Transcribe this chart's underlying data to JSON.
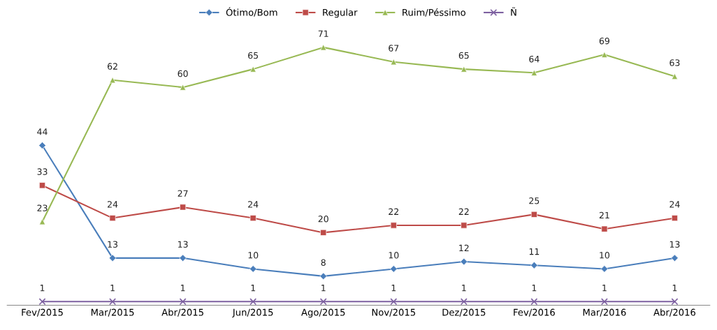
{
  "chart_data": {
    "type": "line",
    "categories": [
      "Fev/2015",
      "Mar/2015",
      "Abr/2015",
      "Jun/2015",
      "Ago/2015",
      "Nov/2015",
      "Dez/2015",
      "Fev/2016",
      "Mar/2016",
      "Abr/2016"
    ],
    "series": [
      {
        "name": "Ótimo/Bom",
        "color": "#4a7ebb",
        "marker": "diamond",
        "values": [
          44,
          13,
          13,
          10,
          8,
          10,
          12,
          11,
          10,
          13
        ]
      },
      {
        "name": "Regular",
        "color": "#be4b48",
        "marker": "square",
        "values": [
          33,
          24,
          27,
          24,
          20,
          22,
          22,
          25,
          21,
          24
        ]
      },
      {
        "name": "Ruim/Péssimo",
        "color": "#98b954",
        "marker": "triangle",
        "values": [
          23,
          62,
          60,
          65,
          71,
          67,
          65,
          64,
          69,
          63
        ]
      },
      {
        "name": "Ñ",
        "color": "#7d60a0",
        "marker": "cross",
        "values": [
          1,
          1,
          1,
          1,
          1,
          1,
          1,
          1,
          1,
          1
        ]
      }
    ],
    "tick_labels": "x",
    "data_labels": true,
    "legend": "top",
    "grid": false
  }
}
